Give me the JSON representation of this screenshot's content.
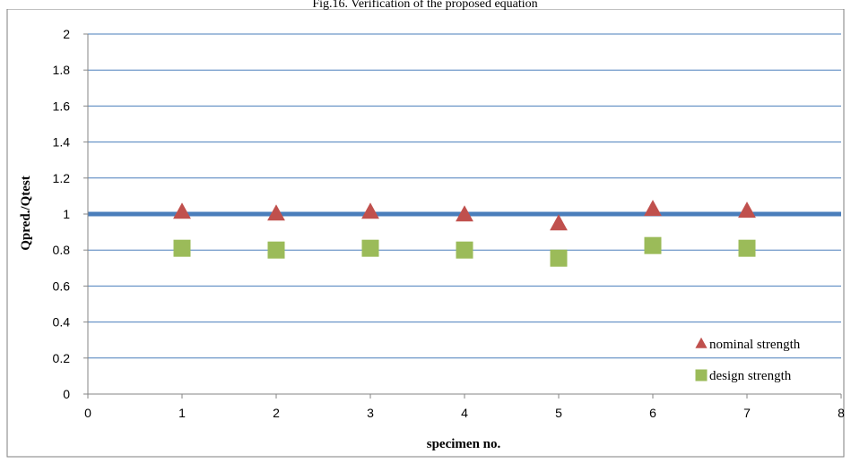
{
  "chart_data": {
    "type": "scatter",
    "title": "Fig.16. Verification of the proposed equation",
    "xlabel": "specimen no.",
    "ylabel": "Qpred./Qtest",
    "xlim": [
      0,
      8
    ],
    "ylim": [
      0,
      2
    ],
    "x_ticks": [
      "0",
      "1",
      "2",
      "3",
      "4",
      "5",
      "6",
      "7",
      "8"
    ],
    "y_ticks": [
      "0",
      "0.2",
      "0.4",
      "0.6",
      "0.8",
      "1",
      "1.2",
      "1.4",
      "1.6",
      "1.8",
      "2"
    ],
    "grid": "horizontal",
    "reference_line": {
      "y": 1,
      "color": "#4a7ebb"
    },
    "legend_position": "bottom-right",
    "series": [
      {
        "name": "nominal strength",
        "marker": "triangle",
        "color": "#c0504d",
        "x": [
          1,
          2,
          3,
          4,
          5,
          6,
          7
        ],
        "y": [
          1.01,
          1.0,
          1.01,
          0.995,
          0.945,
          1.025,
          1.015
        ]
      },
      {
        "name": "design strength",
        "marker": "square",
        "color": "#9bbb59",
        "x": [
          1,
          2,
          3,
          4,
          5,
          6,
          7
        ],
        "y": [
          0.81,
          0.8,
          0.81,
          0.8,
          0.755,
          0.825,
          0.81
        ]
      }
    ]
  }
}
